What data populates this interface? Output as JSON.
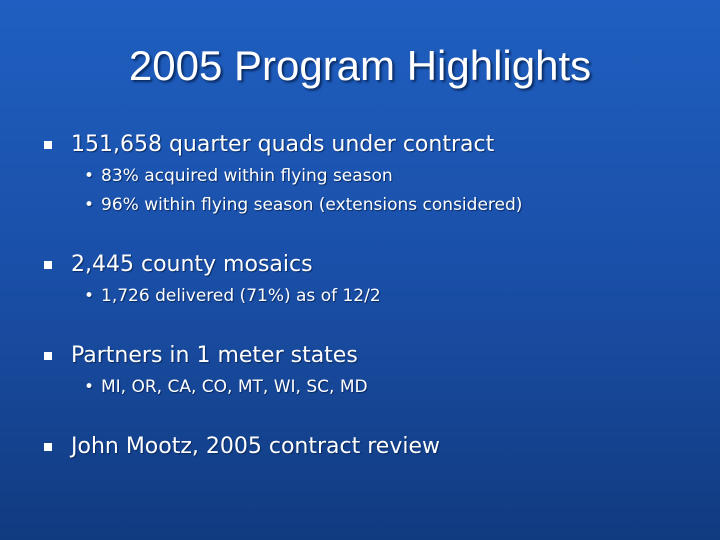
{
  "slide": {
    "title": "2005 Program Highlights",
    "bullets": [
      {
        "text": "151,658 quarter quads under contract",
        "sub": [
          "83% acquired within flying season",
          "96% within flying season (extensions considered)"
        ]
      },
      {
        "text": "2,445 county mosaics",
        "sub": [
          "1,726 delivered (71%) as of 12/2"
        ]
      },
      {
        "text": "Partners in 1 meter states",
        "sub": [
          "MI, OR, CA, CO, MT, WI, SC, MD"
        ]
      },
      {
        "text": "John Mootz, 2005 contract review",
        "sub": []
      }
    ]
  }
}
